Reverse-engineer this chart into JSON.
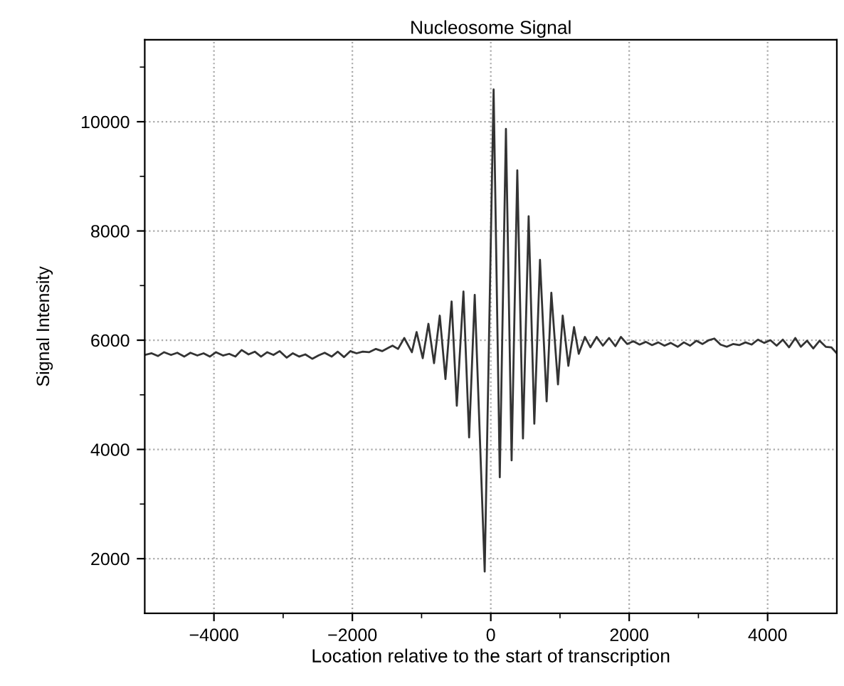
{
  "chart_data": {
    "type": "line",
    "title": "Nucleosome Signal",
    "xlabel": "Location relative to the start of transcription",
    "ylabel": "Signal Intensity",
    "xlim": [
      -5000,
      5000
    ],
    "ylim": [
      1000,
      11500
    ],
    "xticks": [
      {
        "value": -4000,
        "label": "−4000"
      },
      {
        "value": -3000,
        "label": null
      },
      {
        "value": -2000,
        "label": "−2000"
      },
      {
        "value": -1000,
        "label": null
      },
      0,
      {
        "value": 1000,
        "label": null
      },
      2000,
      {
        "value": 3000,
        "label": null
      },
      4000
    ],
    "yticks": [
      2000,
      {
        "value": 3000,
        "label": null
      },
      4000,
      {
        "value": 5000,
        "label": null
      },
      6000,
      {
        "value": 7000,
        "label": null
      },
      8000,
      {
        "value": 9000,
        "label": null
      },
      10000,
      {
        "value": 11000,
        "label": null
      }
    ],
    "grid": true,
    "marker": "none",
    "line_style": "solid",
    "series": [
      {
        "color": "#333333",
        "x": [
          -5000,
          -4900,
          -4810,
          -4720,
          -4620,
          -4530,
          -4430,
          -4340,
          -4240,
          -4150,
          -4060,
          -3970,
          -3870,
          -3780,
          -3690,
          -3600,
          -3500,
          -3410,
          -3320,
          -3230,
          -3140,
          -3050,
          -2950,
          -2860,
          -2770,
          -2680,
          -2580,
          -2490,
          -2400,
          -2300,
          -2210,
          -2120,
          -2030,
          -1940,
          -1850,
          -1760,
          -1660,
          -1570,
          -1480,
          -1420,
          -1340,
          -1250,
          -1140,
          -1072,
          -983,
          -901,
          -820,
          -737,
          -655,
          -566,
          -491,
          -395,
          -313,
          -232,
          -88,
          41,
          130,
          219,
          301,
          383,
          465,
          547,
          629,
          711,
          807,
          875,
          971,
          1039,
          1121,
          1203,
          1271,
          1360,
          1440,
          1530,
          1620,
          1710,
          1800,
          1880,
          1970,
          2060,
          2150,
          2240,
          2330,
          2420,
          2510,
          2600,
          2700,
          2790,
          2880,
          2970,
          3060,
          3150,
          3230,
          3320,
          3410,
          3500,
          3590,
          3680,
          3770,
          3860,
          3950,
          4040,
          4130,
          4220,
          4310,
          4400,
          4480,
          4570,
          4660,
          4750,
          4840,
          4920,
          5000
        ],
        "values": [
          5730,
          5760,
          5710,
          5780,
          5730,
          5770,
          5700,
          5770,
          5720,
          5760,
          5700,
          5780,
          5720,
          5750,
          5700,
          5820,
          5740,
          5790,
          5700,
          5780,
          5730,
          5800,
          5680,
          5760,
          5700,
          5740,
          5660,
          5720,
          5770,
          5700,
          5790,
          5690,
          5800,
          5760,
          5790,
          5780,
          5840,
          5800,
          5860,
          5900,
          5840,
          6040,
          5780,
          6150,
          5670,
          6300,
          5580,
          6450,
          5290,
          6710,
          4800,
          6890,
          4220,
          6830,
          1765,
          10590,
          3490,
          9870,
          3800,
          9110,
          4200,
          8270,
          4470,
          7470,
          4880,
          6870,
          5190,
          6450,
          5530,
          6240,
          5750,
          6060,
          5870,
          6060,
          5900,
          6040,
          5890,
          6060,
          5930,
          5980,
          5920,
          5970,
          5910,
          5960,
          5900,
          5950,
          5880,
          5960,
          5900,
          5990,
          5930,
          6000,
          6030,
          5920,
          5880,
          5930,
          5910,
          5960,
          5920,
          6010,
          5950,
          6000,
          5900,
          6010,
          5870,
          6040,
          5880,
          5990,
          5850,
          5990,
          5880,
          5870,
          5760
        ]
      }
    ]
  }
}
